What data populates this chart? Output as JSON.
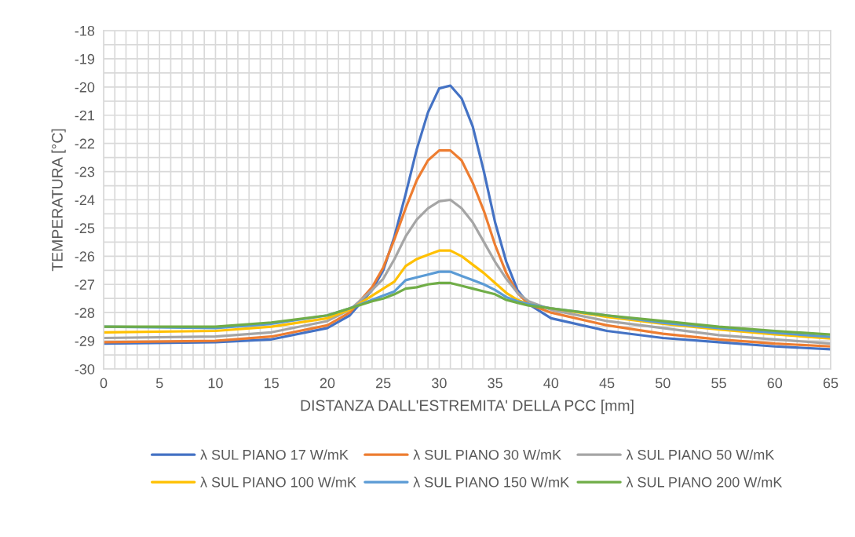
{
  "chart_data": {
    "type": "line",
    "xlabel": "DISTANZA DALL'ESTREMITA' DELLA PCC [mm]",
    "ylabel": "TEMPERATURA [°C]",
    "x": [
      0,
      10,
      15,
      20,
      22,
      24,
      25,
      26,
      27,
      28,
      29,
      30,
      31,
      32,
      33,
      34,
      35,
      36,
      37,
      38,
      40,
      45,
      50,
      55,
      60,
      65
    ],
    "series": [
      {
        "name": "λ SUL PIANO 17 W/mK",
        "color": "#4472c4",
        "values": [
          -29.1,
          -29.05,
          -28.95,
          -28.55,
          -28.1,
          -27.2,
          -26.5,
          -25.3,
          -23.8,
          -22.2,
          -20.9,
          -20.05,
          -19.95,
          -20.4,
          -21.4,
          -23.0,
          -24.8,
          -26.2,
          -27.2,
          -27.7,
          -28.2,
          -28.65,
          -28.9,
          -29.05,
          -29.2,
          -29.3
        ]
      },
      {
        "name": "λ SUL PIANO 30 W/mK",
        "color": "#ed7d31",
        "values": [
          -29.05,
          -29.0,
          -28.85,
          -28.45,
          -28.0,
          -27.1,
          -26.4,
          -25.4,
          -24.3,
          -23.3,
          -22.6,
          -22.25,
          -22.25,
          -22.6,
          -23.4,
          -24.4,
          -25.6,
          -26.6,
          -27.3,
          -27.7,
          -28.0,
          -28.45,
          -28.75,
          -28.95,
          -29.1,
          -29.2
        ]
      },
      {
        "name": "λ SUL PIANO 50 W/mK",
        "color": "#a5a5a5",
        "values": [
          -28.9,
          -28.85,
          -28.7,
          -28.3,
          -27.9,
          -27.2,
          -26.8,
          -26.1,
          -25.3,
          -24.7,
          -24.3,
          -24.05,
          -24.0,
          -24.3,
          -24.8,
          -25.5,
          -26.2,
          -26.8,
          -27.3,
          -27.6,
          -27.9,
          -28.3,
          -28.55,
          -28.8,
          -28.95,
          -29.1
        ]
      },
      {
        "name": "λ SUL PIANO 100 W/mK",
        "color": "#ffc000",
        "values": [
          -28.7,
          -28.65,
          -28.5,
          -28.2,
          -27.9,
          -27.4,
          -27.15,
          -26.9,
          -26.35,
          -26.1,
          -25.95,
          -25.8,
          -25.8,
          -26.0,
          -26.3,
          -26.6,
          -26.95,
          -27.3,
          -27.55,
          -27.7,
          -27.85,
          -28.15,
          -28.4,
          -28.6,
          -28.77,
          -28.92
        ]
      },
      {
        "name": "λ SUL PIANO 150 W/mK",
        "color": "#5b9bd5",
        "values": [
          -28.5,
          -28.55,
          -28.4,
          -28.1,
          -27.85,
          -27.55,
          -27.4,
          -27.25,
          -26.85,
          -26.75,
          -26.65,
          -26.55,
          -26.55,
          -26.7,
          -26.85,
          -27.0,
          -27.2,
          -27.45,
          -27.6,
          -27.7,
          -27.85,
          -28.1,
          -28.36,
          -28.55,
          -28.72,
          -28.86
        ]
      },
      {
        "name": "λ SUL PIANO 200 W/mK",
        "color": "#70ad47",
        "values": [
          -28.5,
          -28.5,
          -28.35,
          -28.1,
          -27.85,
          -27.6,
          -27.5,
          -27.35,
          -27.15,
          -27.1,
          -27.0,
          -26.95,
          -26.95,
          -27.05,
          -27.15,
          -27.25,
          -27.35,
          -27.55,
          -27.65,
          -27.75,
          -27.85,
          -28.1,
          -28.3,
          -28.5,
          -28.65,
          -28.78
        ]
      }
    ],
    "xlim": [
      0,
      65
    ],
    "ylim": [
      -30,
      -18
    ],
    "xticks": [
      0,
      {
        "value": 1,
        "label": null
      },
      {
        "value": 2,
        "label": null
      },
      {
        "value": 3,
        "label": null
      },
      {
        "value": 4,
        "label": null
      },
      5,
      {
        "value": 6,
        "label": null
      },
      {
        "value": 7,
        "label": null
      },
      {
        "value": 8,
        "label": null
      },
      {
        "value": 9,
        "label": null
      },
      10,
      {
        "value": 11,
        "label": null
      },
      {
        "value": 12,
        "label": null
      },
      {
        "value": 13,
        "label": null
      },
      {
        "value": 14,
        "label": null
      },
      15,
      {
        "value": 16,
        "label": null
      },
      {
        "value": 17,
        "label": null
      },
      {
        "value": 18,
        "label": null
      },
      {
        "value": 19,
        "label": null
      },
      20,
      {
        "value": 21,
        "label": null
      },
      {
        "value": 22,
        "label": null
      },
      {
        "value": 23,
        "label": null
      },
      {
        "value": 24,
        "label": null
      },
      25,
      {
        "value": 26,
        "label": null
      },
      {
        "value": 27,
        "label": null
      },
      {
        "value": 28,
        "label": null
      },
      {
        "value": 29,
        "label": null
      },
      30,
      {
        "value": 31,
        "label": null
      },
      {
        "value": 32,
        "label": null
      },
      {
        "value": 33,
        "label": null
      },
      {
        "value": 34,
        "label": null
      },
      35,
      {
        "value": 36,
        "label": null
      },
      {
        "value": 37,
        "label": null
      },
      {
        "value": 38,
        "label": null
      },
      {
        "value": 39,
        "label": null
      },
      40,
      {
        "value": 41,
        "label": null
      },
      {
        "value": 42,
        "label": null
      },
      {
        "value": 43,
        "label": null
      },
      {
        "value": 44,
        "label": null
      },
      45,
      {
        "value": 46,
        "label": null
      },
      {
        "value": 47,
        "label": null
      },
      {
        "value": 48,
        "label": null
      },
      {
        "value": 49,
        "label": null
      },
      50,
      {
        "value": 51,
        "label": null
      },
      {
        "value": 52,
        "label": null
      },
      {
        "value": 53,
        "label": null
      },
      {
        "value": 54,
        "label": null
      },
      55,
      {
        "value": 56,
        "label": null
      },
      {
        "value": 57,
        "label": null
      },
      {
        "value": 58,
        "label": null
      },
      {
        "value": 59,
        "label": null
      },
      60,
      {
        "value": 61,
        "label": null
      },
      {
        "value": 62,
        "label": null
      },
      {
        "value": 63,
        "label": null
      },
      {
        "value": 64,
        "label": null
      },
      65
    ],
    "yticks": [
      -30,
      {
        "value": -29.5,
        "label": null
      },
      -29,
      {
        "value": -28.5,
        "label": null
      },
      -28,
      {
        "value": -27.5,
        "label": null
      },
      -27,
      {
        "value": -26.5,
        "label": null
      },
      -26,
      {
        "value": -25.5,
        "label": null
      },
      -25,
      {
        "value": -24.5,
        "label": null
      },
      -24,
      {
        "value": -23.5,
        "label": null
      },
      -23,
      {
        "value": -22.5,
        "label": null
      },
      -22,
      {
        "value": -21.5,
        "label": null
      },
      -21,
      {
        "value": -20.5,
        "label": null
      },
      -20,
      {
        "value": -19.5,
        "label": null
      },
      -19,
      {
        "value": -18.5,
        "label": null
      },
      -18
    ],
    "grid": true,
    "legend": "bottom",
    "marker": "none",
    "line_style": "solid"
  }
}
